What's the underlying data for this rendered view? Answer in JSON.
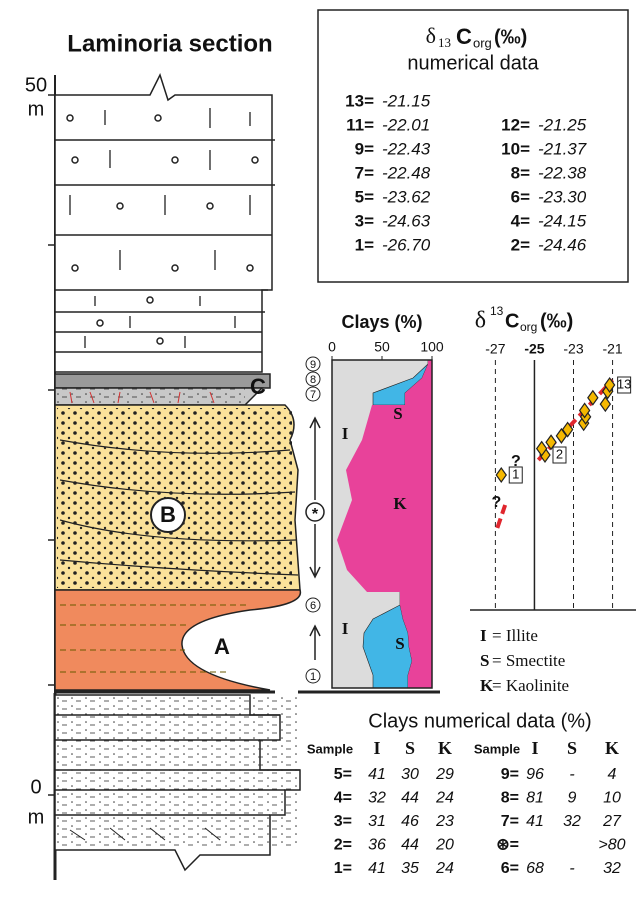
{
  "section": {
    "title": "Laminoria section",
    "top_label": "50",
    "top_unit": "m",
    "bottom_label": "0",
    "bottom_unit": "m",
    "units": [
      "A",
      "B",
      "C"
    ]
  },
  "carbon_table": {
    "title": {
      "delta": "δ",
      "sub": "13",
      "c": "C",
      "org": "org",
      "permil": "(‰)"
    },
    "subtitle": "numerical data",
    "entries": [
      {
        "sample": "1=",
        "value": {
          "value": -26.7,
          "label": "-26.70"
        }
      },
      {
        "sample": "2=",
        "value": -24.46
      },
      {
        "sample": "3=",
        "value": -24.63
      },
      {
        "sample": "4=",
        "value": -24.15
      },
      {
        "sample": "5=",
        "value": -23.62
      },
      {
        "sample": "6=",
        "value": {
          "value": -23.3,
          "label": "-23.30"
        }
      },
      {
        "sample": "7=",
        "value": -22.48
      },
      {
        "sample": "8=",
        "value": -22.38
      },
      {
        "sample": "9=",
        "value": -22.43
      },
      {
        "sample": "10=",
        "value": -21.37
      },
      {
        "sample": "11=",
        "value": -22.01
      },
      {
        "sample": "12=",
        "value": -21.25
      },
      {
        "sample": "13=",
        "value": -21.15
      }
    ]
  },
  "carbon_chart": {
    "title": {
      "delta": "δ",
      "sup": "13",
      "c": "C",
      "org": "org",
      "permil": "(‰)"
    },
    "xlim": [
      -28.3,
      -19.8
    ],
    "xticks": [
      -27,
      -25,
      -23,
      -21
    ],
    "point_labels": [
      "1",
      "2",
      "13"
    ],
    "question": "?",
    "point_color": "#f5b800",
    "trend_color": "#e0262d",
    "legend": [
      {
        "key": "I",
        "text": "= Illite"
      },
      {
        "key": "S",
        "text": "= Smectite"
      },
      {
        "key": "K",
        "text": "= Kaolinite"
      }
    ]
  },
  "clay_chart": {
    "title": "Clays (%)",
    "xlim": [
      0,
      100
    ],
    "xticks": [
      0,
      50,
      100
    ],
    "labels": [
      "I",
      "S",
      "K",
      "I",
      "S"
    ],
    "sample_marks": [
      "1",
      "6",
      "7",
      "8",
      "9",
      "*"
    ],
    "colors": {
      "I": "#dcdcdc",
      "S": "#41b6e6",
      "K": "#e8429a"
    }
  },
  "clay_table": {
    "title": "Clays numerical data (%)",
    "header": [
      "Sample",
      "I",
      "S",
      "K"
    ],
    "left": [
      {
        "sample": "5=",
        "I": 41,
        "S": 30,
        "K": 29
      },
      {
        "sample": "4=",
        "I": 32,
        "S": 44,
        "K": 24
      },
      {
        "sample": "3=",
        "I": 31,
        "S": 46,
        "K": 23
      },
      {
        "sample": "2=",
        "I": 36,
        "S": 44,
        "K": 20
      },
      {
        "sample": "1=",
        "I": 41,
        "S": 35,
        "K": 24
      }
    ],
    "right": [
      {
        "sample": "9=",
        "I": 96,
        "S": "-",
        "K": 4
      },
      {
        "sample": "8=",
        "I": 81,
        "S": 9,
        "K": 10
      },
      {
        "sample": "7=",
        "I": 41,
        "S": 32,
        "K": 27
      },
      {
        "sample": "⊛=",
        "K": ">80"
      },
      {
        "sample": "6=",
        "I": 68,
        "S": "-",
        "K": 32
      }
    ]
  }
}
